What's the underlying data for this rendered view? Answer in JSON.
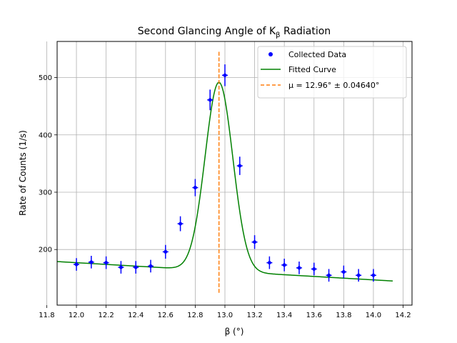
{
  "chart_data": {
    "type": "scatter",
    "title_main": "Second Glancing Angle of K",
    "title_sub": "β",
    "title_end": " Radiation",
    "xlabel": "β   (°)",
    "ylabel": "Rate of Counts (1/s)",
    "xlim": [
      11.87,
      14.26
    ],
    "ylim": [
      103,
      563
    ],
    "xticks": [
      11.8,
      12.0,
      12.2,
      12.4,
      12.6,
      12.8,
      13.0,
      13.2,
      13.4,
      13.6,
      13.8,
      14.0,
      14.2
    ],
    "xtick_labels": [
      "11.8",
      "12.0",
      "12.2",
      "12.4",
      "12.6",
      "12.8",
      "13.0",
      "13.2",
      "13.4",
      "13.6",
      "13.8",
      "14.0",
      "14.2"
    ],
    "yticks": [
      200,
      300,
      400,
      500
    ],
    "ytick_labels": [
      "200",
      "300",
      "400",
      "500"
    ],
    "grid": true,
    "legend_placement": "top-right",
    "series": [
      {
        "name": "Collected Data",
        "kind": "points_with_errorbars",
        "color": "#0000ff",
        "x": [
          12.0,
          12.1,
          12.2,
          12.3,
          12.4,
          12.5,
          12.6,
          12.7,
          12.8,
          12.9,
          13.0,
          13.1,
          13.2,
          13.3,
          13.4,
          13.5,
          13.6,
          13.7,
          13.8,
          13.9,
          14.0
        ],
        "y": [
          174,
          178,
          177,
          169,
          169,
          171,
          196,
          245,
          308,
          461,
          504,
          346,
          213,
          177,
          173,
          168,
          166,
          155,
          161,
          155,
          155
        ],
        "yerr": [
          11,
          11,
          11,
          11,
          11,
          11,
          12,
          13,
          15,
          18,
          19,
          16,
          12,
          11,
          11,
          11,
          11,
          11,
          11,
          11,
          11
        ]
      },
      {
        "name": "Fitted Curve",
        "kind": "line",
        "color": "#008000",
        "model": "gaussian_plus_linear",
        "params": {
          "amplitude": 329,
          "mean": 12.96,
          "sigma": 0.093,
          "intercept": 179,
          "slope": -15.0,
          "x0": 11.87
        },
        "x_range": [
          11.87,
          14.13
        ]
      },
      {
        "name": "μ = 12.96° ± 0.04640°",
        "kind": "vline",
        "color": "#ff7f0e",
        "x": 12.96,
        "y_range": [
          123,
          545
        ]
      }
    ]
  }
}
